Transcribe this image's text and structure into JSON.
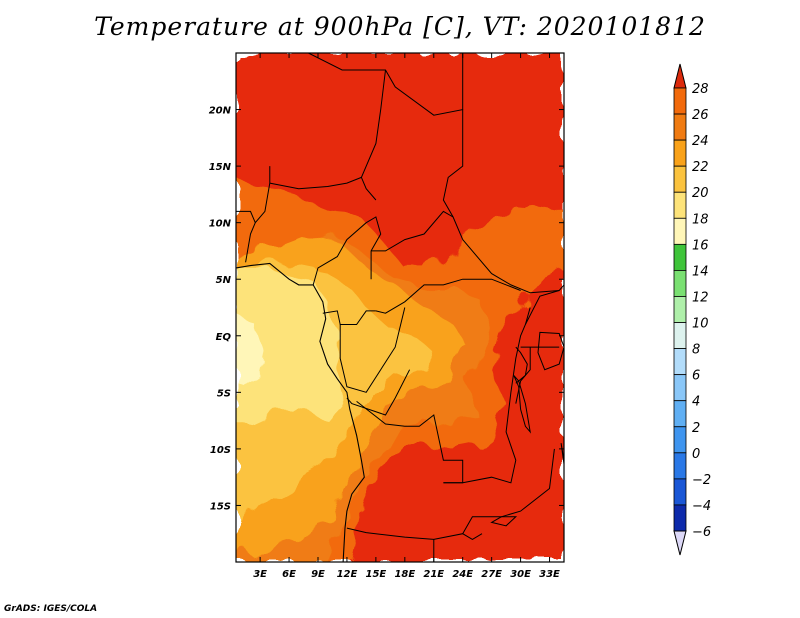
{
  "title": "Temperature at 900hPa [C], VT: 2020101812",
  "credit": "GrADS: IGES/COLA",
  "map": {
    "lon_range": [
      0.5,
      34.5
    ],
    "lat_range": [
      -20,
      25
    ],
    "x_ticks": [
      {
        "lon": 3,
        "label": "3E"
      },
      {
        "lon": 6,
        "label": "6E"
      },
      {
        "lon": 9,
        "label": "9E"
      },
      {
        "lon": 12,
        "label": "12E"
      },
      {
        "lon": 15,
        "label": "15E"
      },
      {
        "lon": 18,
        "label": "18E"
      },
      {
        "lon": 21,
        "label": "21E"
      },
      {
        "lon": 24,
        "label": "24E"
      },
      {
        "lon": 27,
        "label": "27E"
      },
      {
        "lon": 30,
        "label": "30E"
      },
      {
        "lon": 33,
        "label": "33E"
      }
    ],
    "y_ticks": [
      {
        "lat": 20,
        "label": "20N"
      },
      {
        "lat": 15,
        "label": "15N"
      },
      {
        "lat": 10,
        "label": "10N"
      },
      {
        "lat": 5,
        "label": "5N"
      },
      {
        "lat": 0,
        "label": "EQ"
      },
      {
        "lat": -5,
        "label": "5S"
      },
      {
        "lat": -10,
        "label": "10S"
      },
      {
        "lat": -15,
        "label": "15S"
      }
    ],
    "regions": [
      {
        "level": 26,
        "color": "#e62b0a",
        "poly": [
          [
            0.5,
            25
          ],
          [
            34.5,
            25
          ],
          [
            34.5,
            -20
          ],
          [
            0.5,
            -20
          ]
        ]
      },
      {
        "level": 24,
        "color": "#f26a0c",
        "poly": [
          [
            0.5,
            14
          ],
          [
            4,
            13
          ],
          [
            8,
            12
          ],
          [
            11,
            11
          ],
          [
            14,
            10
          ],
          [
            16,
            8
          ],
          [
            18,
            6
          ],
          [
            20,
            6
          ],
          [
            22,
            7
          ],
          [
            25,
            9
          ],
          [
            28,
            11
          ],
          [
            31,
            11.5
          ],
          [
            34.5,
            11
          ],
          [
            34.5,
            6
          ],
          [
            32,
            5
          ],
          [
            30,
            3
          ],
          [
            28,
            0
          ],
          [
            27,
            -3
          ],
          [
            28.5,
            -6
          ],
          [
            27.5,
            -8
          ],
          [
            26,
            -9.5
          ],
          [
            23,
            -10
          ],
          [
            20,
            -9.5
          ],
          [
            17,
            -10.5
          ],
          [
            15,
            -13
          ],
          [
            13.5,
            -16
          ],
          [
            12.5,
            -20
          ],
          [
            0.5,
            -20
          ]
        ]
      },
      {
        "level": 28,
        "color": "#f07b12",
        "poly": [
          [
            0.5,
            6
          ],
          [
            4,
            7
          ],
          [
            8,
            8.5
          ],
          [
            11,
            9
          ],
          [
            14,
            7
          ],
          [
            17,
            5
          ],
          [
            21,
            4
          ],
          [
            24,
            4
          ],
          [
            26,
            3
          ],
          [
            27,
            0.5
          ],
          [
            26,
            -2
          ],
          [
            24.5,
            -4
          ],
          [
            25.5,
            -7
          ],
          [
            23,
            -8
          ],
          [
            20,
            -7.5
          ],
          [
            17,
            -8
          ],
          [
            15,
            -11
          ],
          [
            13,
            -14
          ],
          [
            11.5,
            -17
          ],
          [
            10,
            -20
          ],
          [
            0.5,
            -20
          ]
        ]
      },
      {
        "level": 22,
        "color": "#f9a21a",
        "poly": [
          [
            0.5,
            7
          ],
          [
            4,
            8
          ],
          [
            7,
            9
          ],
          [
            11,
            8.5
          ],
          [
            14,
            6
          ],
          [
            17,
            4.5
          ],
          [
            20,
            2.5
          ],
          [
            23,
            1
          ],
          [
            24.5,
            -1
          ],
          [
            23,
            -3.5
          ],
          [
            21,
            -4.5
          ],
          [
            18,
            -5
          ],
          [
            16,
            -7
          ],
          [
            14,
            -10
          ],
          [
            12,
            -13
          ],
          [
            10,
            -16
          ],
          [
            7,
            -18
          ],
          [
            3,
            -19
          ],
          [
            0.5,
            -19.5
          ]
        ]
      },
      {
        "level": 20,
        "color": "#fbc33f",
        "poly": [
          [
            0.5,
            6
          ],
          [
            4,
            6.5
          ],
          [
            7,
            6
          ],
          [
            10,
            5.5
          ],
          [
            12,
            4.5
          ],
          [
            14,
            2.5
          ],
          [
            16,
            1
          ],
          [
            19,
            0
          ],
          [
            21,
            -1.5
          ],
          [
            20,
            -3
          ],
          [
            17,
            -3.5
          ],
          [
            15,
            -5
          ],
          [
            13,
            -7
          ],
          [
            11,
            -10
          ],
          [
            9,
            -12
          ],
          [
            6,
            -13.5
          ],
          [
            3,
            -15
          ],
          [
            0.5,
            -16
          ]
        ]
      },
      {
        "level": 18,
        "color": "#fde37a",
        "poly": [
          [
            0.5,
            6
          ],
          [
            3,
            6
          ],
          [
            6,
            5.5
          ],
          [
            9,
            4.5
          ],
          [
            10,
            3
          ],
          [
            11,
            0
          ],
          [
            11,
            -3
          ],
          [
            12,
            -5.5
          ],
          [
            10,
            -7.5
          ],
          [
            7,
            -6.5
          ],
          [
            4,
            -7
          ],
          [
            1.5,
            -8
          ],
          [
            0.5,
            -8
          ]
        ]
      },
      {
        "level": 16,
        "color": "#fff6b8",
        "poly": [
          [
            0.5,
            2
          ],
          [
            2.5,
            1
          ],
          [
            3.5,
            -1.5
          ],
          [
            3,
            -3.5
          ],
          [
            1.5,
            -4.5
          ],
          [
            0.5,
            -4
          ]
        ]
      }
    ],
    "borders": [
      [
        [
          8,
          25
        ],
        [
          11.5,
          23.5
        ],
        [
          16,
          23.5
        ],
        [
          17,
          22
        ],
        [
          21,
          19.5
        ],
        [
          24,
          20
        ],
        [
          24,
          25
        ]
      ],
      [
        [
          24,
          20
        ],
        [
          24,
          15
        ],
        [
          22.5,
          14
        ],
        [
          22,
          12
        ],
        [
          23,
          10.5
        ],
        [
          24,
          8.5
        ]
      ],
      [
        [
          16,
          23.5
        ],
        [
          15.5,
          20
        ],
        [
          15,
          17
        ],
        [
          13.5,
          14
        ],
        [
          14,
          13
        ],
        [
          15,
          12
        ]
      ],
      [
        [
          4,
          15
        ],
        [
          4,
          13.5
        ],
        [
          3.5,
          11
        ],
        [
          2.5,
          10
        ],
        [
          2,
          9
        ],
        [
          1.5,
          6.5
        ]
      ],
      [
        [
          4,
          13.5
        ],
        [
          7,
          13
        ],
        [
          10,
          13.2
        ],
        [
          12,
          13.5
        ],
        [
          13.5,
          14
        ]
      ],
      [
        [
          0.5,
          11
        ],
        [
          2,
          11
        ],
        [
          2.5,
          10
        ]
      ],
      [
        [
          8.5,
          4.5
        ],
        [
          9,
          6
        ],
        [
          11,
          7
        ],
        [
          12,
          8.5
        ],
        [
          14,
          10
        ],
        [
          15,
          10.5
        ],
        [
          15.5,
          9
        ],
        [
          14.5,
          7.5
        ],
        [
          14.5,
          5
        ]
      ],
      [
        [
          14.5,
          7.5
        ],
        [
          16,
          7.5
        ],
        [
          18,
          8.5
        ],
        [
          20,
          9
        ],
        [
          22,
          11
        ],
        [
          23,
          10.5
        ]
      ],
      [
        [
          24,
          8.5
        ],
        [
          27,
          5.5
        ],
        [
          29,
          4.5
        ],
        [
          31,
          3.8
        ],
        [
          34,
          4
        ],
        [
          34.5,
          4.5
        ]
      ],
      [
        [
          15,
          2.2
        ],
        [
          16,
          2
        ],
        [
          18,
          3
        ],
        [
          20,
          4.5
        ],
        [
          22,
          4.5
        ],
        [
          24,
          5
        ],
        [
          27,
          5
        ],
        [
          30,
          4
        ]
      ],
      [
        [
          9.5,
          2
        ],
        [
          11,
          2.2
        ],
        [
          11.3,
          1
        ],
        [
          13,
          1
        ],
        [
          14,
          2.2
        ],
        [
          15,
          2.2
        ]
      ],
      [
        [
          11.3,
          1
        ],
        [
          11.3,
          -2
        ],
        [
          12,
          -4.5
        ],
        [
          14,
          -5
        ],
        [
          17,
          -1
        ],
        [
          18,
          2.5
        ]
      ],
      [
        [
          18.5,
          -3
        ],
        [
          17,
          -5.5
        ],
        [
          16,
          -7
        ],
        [
          12.5,
          -6
        ],
        [
          12,
          -5.5
        ]
      ],
      [
        [
          13,
          -5.8
        ],
        [
          16,
          -7.8
        ],
        [
          18,
          -8
        ],
        [
          19.5,
          -8
        ],
        [
          21,
          -7
        ],
        [
          22,
          -11
        ],
        [
          24,
          -11
        ],
        [
          24,
          -13
        ],
        [
          22,
          -13
        ]
      ],
      [
        [
          12,
          -17
        ],
        [
          14,
          -17.4
        ],
        [
          18,
          -17.8
        ],
        [
          21,
          -18
        ],
        [
          24,
          -17.5
        ],
        [
          25,
          -18
        ],
        [
          26,
          -17.5
        ]
      ],
      [
        [
          21,
          -18
        ],
        [
          21,
          -20
        ]
      ],
      [
        [
          24,
          -17.5
        ],
        [
          25,
          -16
        ],
        [
          28,
          -16
        ],
        [
          30,
          -15.5
        ],
        [
          33,
          -13.5
        ],
        [
          33.5,
          -10
        ]
      ],
      [
        [
          22,
          -13
        ],
        [
          24,
          -13
        ],
        [
          27,
          -12.5
        ],
        [
          29,
          -13
        ],
        [
          29.5,
          -11
        ],
        [
          28.5,
          -8.5
        ],
        [
          29,
          -5
        ],
        [
          29.5,
          -2
        ],
        [
          30,
          0
        ],
        [
          30.5,
          1
        ],
        [
          31,
          2.5
        ]
      ],
      [
        [
          29.5,
          -1
        ],
        [
          30,
          -1.5
        ],
        [
          30.7,
          -2.5
        ],
        [
          30.5,
          -3.5
        ],
        [
          29.5,
          -4.2
        ]
      ],
      [
        [
          30,
          -1
        ],
        [
          33,
          -1
        ],
        [
          34,
          -1
        ]
      ],
      [
        [
          30.5,
          1
        ],
        [
          32,
          3.5
        ],
        [
          34,
          4
        ]
      ],
      [
        [
          31,
          -1
        ],
        [
          31,
          -3
        ],
        [
          30,
          -4
        ],
        [
          29.5,
          -6
        ]
      ]
    ],
    "lakes": [
      [
        [
          32,
          0.3
        ],
        [
          34,
          0.2
        ],
        [
          34.5,
          -1
        ],
        [
          34,
          -2.5
        ],
        [
          32.5,
          -3
        ],
        [
          31.8,
          -1.5
        ]
      ],
      [
        [
          29.3,
          -3.5
        ],
        [
          29.8,
          -4.5
        ],
        [
          30,
          -6.5
        ],
        [
          30.5,
          -8
        ],
        [
          31,
          -8.5
        ],
        [
          30.5,
          -6
        ],
        [
          29.8,
          -4
        ]
      ],
      [
        [
          34.2,
          -9.5
        ],
        [
          34.5,
          -11
        ],
        [
          34.8,
          -13.5
        ],
        [
          35,
          -14.5
        ],
        [
          34.6,
          -12
        ]
      ],
      [
        [
          27,
          -16.5
        ],
        [
          28.5,
          -16.8
        ],
        [
          29.5,
          -16
        ],
        [
          28,
          -16
        ]
      ]
    ],
    "coastline": [
      [
        0.5,
        6
      ],
      [
        2,
        6.2
      ],
      [
        4,
        6.4
      ],
      [
        6,
        5
      ],
      [
        7,
        4.5
      ],
      [
        8.5,
        4.5
      ],
      [
        9.5,
        3
      ],
      [
        9.8,
        1.5
      ],
      [
        9.5,
        0.5
      ],
      [
        9.2,
        -0.5
      ],
      [
        10,
        -2.5
      ],
      [
        11,
        -3.8
      ],
      [
        12,
        -5
      ],
      [
        12.3,
        -6.5
      ],
      [
        13,
        -8.8
      ],
      [
        13.5,
        -11
      ],
      [
        13.8,
        -12.5
      ],
      [
        12.5,
        -14
      ],
      [
        12,
        -15.5
      ],
      [
        11.8,
        -17
      ],
      [
        11.6,
        -20
      ]
    ]
  },
  "colorbar": {
    "colors": [
      "#0b0b80",
      "#0d2aab",
      "#1a57d6",
      "#2a78e6",
      "#3f95ef",
      "#60aff3",
      "#8ac7f8",
      "#b2dcfa",
      "#ddf2ee",
      "#aff0aa",
      "#7ae072",
      "#3fc43a",
      "#fff6b8",
      "#fde37a",
      "#fbc33f",
      "#f9a21a",
      "#f07b12",
      "#f26a0c",
      "#e62b0a"
    ],
    "under_color": "#dcd8f7",
    "over_color": "#dc2a0c",
    "labels": [
      "28",
      "26",
      "24",
      "22",
      "20",
      "18",
      "16",
      "14",
      "12",
      "10",
      "8",
      "6",
      "4",
      "2",
      "0",
      "−2",
      "−4",
      "−6"
    ]
  }
}
